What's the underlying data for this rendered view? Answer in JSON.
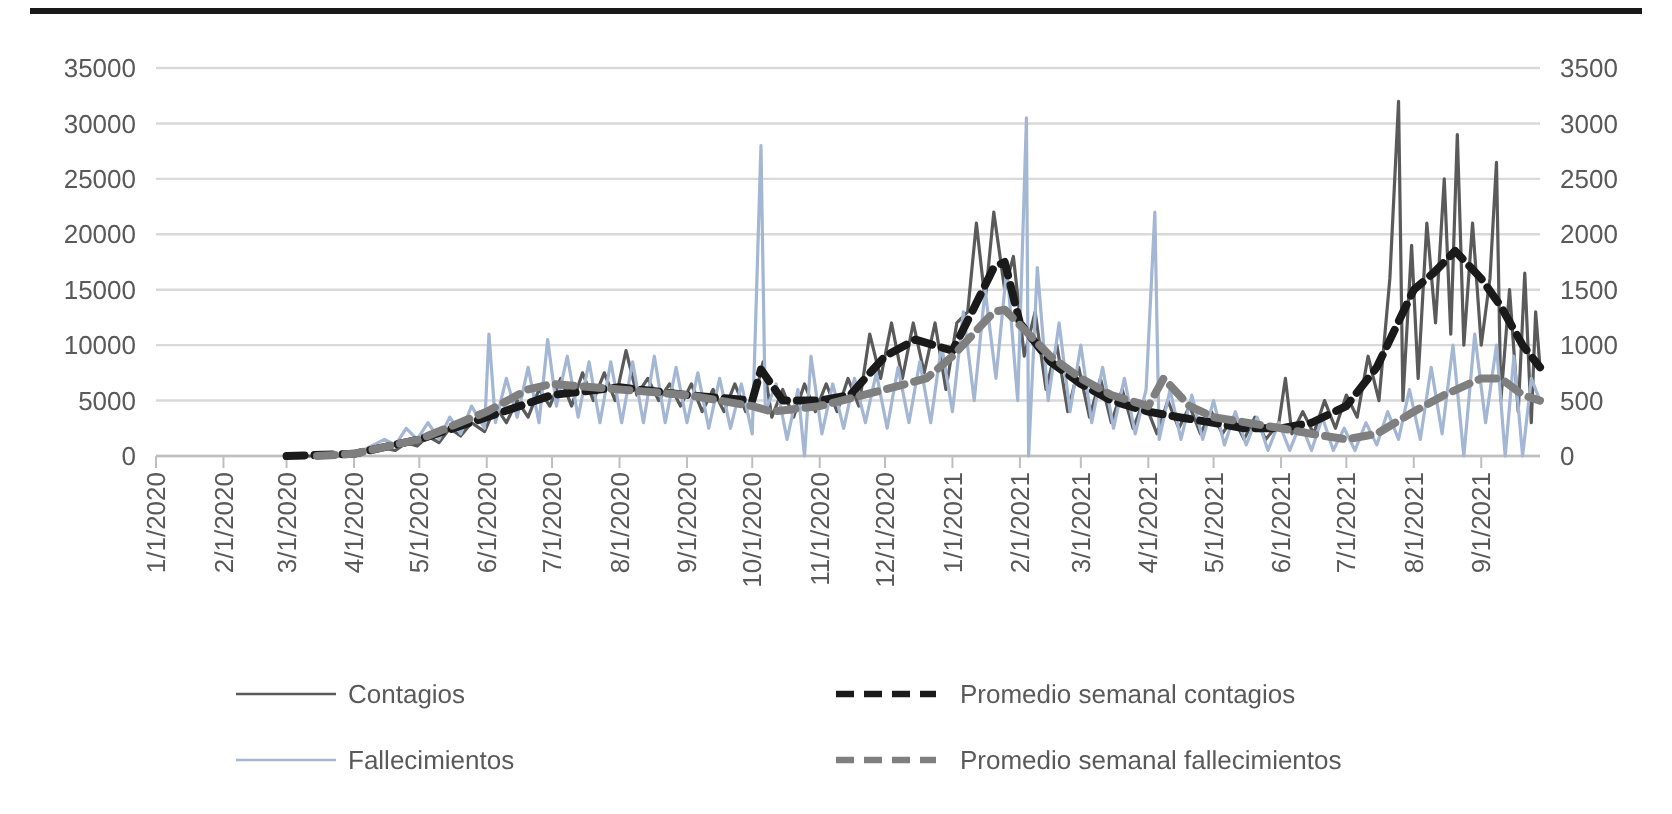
{
  "chart_data": {
    "type": "line",
    "xlim": [
      "2020-01-01",
      "2021-09-28"
    ],
    "xticks": [
      {
        "value": "2020-01-01",
        "label": "1/1/2020"
      },
      {
        "value": "2020-02-01",
        "label": "2/1/2020"
      },
      {
        "value": "2020-03-01",
        "label": "3/1/2020"
      },
      {
        "value": "2020-04-01",
        "label": "4/1/2020"
      },
      {
        "value": "2020-05-01",
        "label": "5/1/2020"
      },
      {
        "value": "2020-06-01",
        "label": "6/1/2020"
      },
      {
        "value": "2020-07-01",
        "label": "7/1/2020"
      },
      {
        "value": "2020-08-01",
        "label": "8/1/2020"
      },
      {
        "value": "2020-09-01",
        "label": "9/1/2020"
      },
      {
        "value": "2020-10-01",
        "label": "10/1/2020"
      },
      {
        "value": "2020-11-01",
        "label": "11/1/2020"
      },
      {
        "value": "2020-12-01",
        "label": "12/1/2020"
      },
      {
        "value": "2021-01-01",
        "label": "1/1/2021"
      },
      {
        "value": "2021-02-01",
        "label": "2/1/2021"
      },
      {
        "value": "2021-03-01",
        "label": "3/1/2021"
      },
      {
        "value": "2021-04-01",
        "label": "4/1/2021"
      },
      {
        "value": "2021-05-01",
        "label": "5/1/2021"
      },
      {
        "value": "2021-06-01",
        "label": "6/1/2021"
      },
      {
        "value": "2021-07-01",
        "label": "7/1/2021"
      },
      {
        "value": "2021-08-01",
        "label": "8/1/2021"
      },
      {
        "value": "2021-09-01",
        "label": "9/1/2021"
      }
    ],
    "ylim": [
      0,
      35000
    ],
    "yticks": [
      0,
      5000,
      10000,
      15000,
      20000,
      25000,
      30000,
      35000
    ],
    "y2lim": [
      0,
      3500
    ],
    "y2ticks": [
      0,
      500,
      1000,
      1500,
      2000,
      2500,
      3000,
      3500
    ],
    "grid": "y",
    "legend": "bottom",
    "marker": "none",
    "series": [
      {
        "name": "Contagios",
        "color": "#5a5a5a",
        "line_style": "solid",
        "x": [
          "2020-03-01",
          "2020-03-10",
          "2020-03-20",
          "2020-03-30",
          "2020-04-05",
          "2020-04-10",
          "2020-04-15",
          "2020-04-20",
          "2020-04-25",
          "2020-04-30",
          "2020-05-05",
          "2020-05-10",
          "2020-05-15",
          "2020-05-20",
          "2020-05-25",
          "2020-05-31",
          "2020-06-05",
          "2020-06-10",
          "2020-06-15",
          "2020-06-20",
          "2020-06-25",
          "2020-06-30",
          "2020-07-05",
          "2020-07-10",
          "2020-07-15",
          "2020-07-20",
          "2020-07-25",
          "2020-07-30",
          "2020-08-04",
          "2020-08-09",
          "2020-08-14",
          "2020-08-19",
          "2020-08-24",
          "2020-08-29",
          "2020-09-03",
          "2020-09-08",
          "2020-09-13",
          "2020-09-18",
          "2020-09-23",
          "2020-09-28",
          "2020-10-03",
          "2020-10-06",
          "2020-10-10",
          "2020-10-15",
          "2020-10-20",
          "2020-10-25",
          "2020-10-30",
          "2020-11-04",
          "2020-11-09",
          "2020-11-14",
          "2020-11-19",
          "2020-11-24",
          "2020-11-29",
          "2020-12-04",
          "2020-12-09",
          "2020-12-14",
          "2020-12-19",
          "2020-12-24",
          "2020-12-29",
          "2021-01-03",
          "2021-01-08",
          "2021-01-12",
          "2021-01-16",
          "2021-01-20",
          "2021-01-25",
          "2021-01-29",
          "2021-02-03",
          "2021-02-08",
          "2021-02-13",
          "2021-02-18",
          "2021-02-23",
          "2021-02-28",
          "2021-03-05",
          "2021-03-10",
          "2021-03-15",
          "2021-03-20",
          "2021-03-25",
          "2021-03-30",
          "2021-04-05",
          "2021-04-10",
          "2021-04-15",
          "2021-04-20",
          "2021-04-25",
          "2021-04-30",
          "2021-05-05",
          "2021-05-10",
          "2021-05-15",
          "2021-05-20",
          "2021-05-25",
          "2021-05-31",
          "2021-06-03",
          "2021-06-06",
          "2021-06-11",
          "2021-06-16",
          "2021-06-21",
          "2021-06-26",
          "2021-07-01",
          "2021-07-06",
          "2021-07-11",
          "2021-07-16",
          "2021-07-21",
          "2021-07-25",
          "2021-07-27",
          "2021-07-31",
          "2021-08-03",
          "2021-08-07",
          "2021-08-11",
          "2021-08-15",
          "2021-08-18",
          "2021-08-21",
          "2021-08-24",
          "2021-08-28",
          "2021-09-01",
          "2021-09-05",
          "2021-09-08",
          "2021-09-10",
          "2021-09-14",
          "2021-09-18",
          "2021-09-21",
          "2021-09-24",
          "2021-09-26",
          "2021-09-28"
        ],
        "values": [
          0,
          0,
          0,
          0,
          500,
          500,
          700,
          500,
          1200,
          900,
          1800,
          1200,
          2500,
          1800,
          3000,
          2200,
          4500,
          3000,
          5000,
          3500,
          6000,
          4500,
          7000,
          4500,
          7500,
          5000,
          7500,
          5000,
          9500,
          5500,
          7000,
          5000,
          6500,
          4500,
          6500,
          4000,
          6000,
          4000,
          6500,
          4000,
          6000,
          8500,
          3500,
          6000,
          3500,
          6500,
          4000,
          6500,
          4000,
          7000,
          4500,
          11000,
          7000,
          12000,
          7000,
          12000,
          7500,
          12000,
          6000,
          12000,
          13000,
          21000,
          14000,
          22000,
          15000,
          18000,
          9000,
          13000,
          6000,
          10000,
          4000,
          8000,
          3500,
          7000,
          3000,
          6000,
          2500,
          5000,
          2000,
          5000,
          2500,
          4500,
          2000,
          4000,
          2000,
          3500,
          1500,
          3500,
          1500,
          3000,
          7000,
          2000,
          4000,
          2000,
          5000,
          2500,
          5500,
          3500,
          9000,
          5000,
          16000,
          32000,
          5000,
          19000,
          7000,
          21000,
          12000,
          25000,
          11000,
          29000,
          10000,
          21000,
          10000,
          16000,
          26500,
          5000,
          15000,
          4000,
          16500,
          3000,
          13000,
          8000
        ]
      },
      {
        "name": "Fallecimientos",
        "color": "#a3b6d3",
        "line_style": "solid",
        "axis": "y2",
        "x": [
          "2020-03-20",
          "2020-03-30",
          "2020-04-05",
          "2020-04-10",
          "2020-04-15",
          "2020-04-20",
          "2020-04-25",
          "2020-04-30",
          "2020-05-05",
          "2020-05-10",
          "2020-05-15",
          "2020-05-20",
          "2020-05-25",
          "2020-05-31",
          "2020-06-02",
          "2020-06-05",
          "2020-06-10",
          "2020-06-15",
          "2020-06-20",
          "2020-06-25",
          "2020-06-29",
          "2020-07-03",
          "2020-07-08",
          "2020-07-13",
          "2020-07-18",
          "2020-07-23",
          "2020-07-28",
          "2020-08-02",
          "2020-08-07",
          "2020-08-12",
          "2020-08-17",
          "2020-08-22",
          "2020-08-27",
          "2020-09-01",
          "2020-09-06",
          "2020-09-11",
          "2020-09-16",
          "2020-09-21",
          "2020-09-26",
          "2020-10-01",
          "2020-10-05",
          "2020-10-07",
          "2020-10-12",
          "2020-10-17",
          "2020-10-22",
          "2020-10-25",
          "2020-10-28",
          "2020-11-02",
          "2020-11-07",
          "2020-11-12",
          "2020-11-17",
          "2020-11-22",
          "2020-11-27",
          "2020-12-02",
          "2020-12-07",
          "2020-12-12",
          "2020-12-17",
          "2020-12-22",
          "2020-12-27",
          "2021-01-01",
          "2021-01-06",
          "2021-01-11",
          "2021-01-16",
          "2021-01-21",
          "2021-01-26",
          "2021-01-31",
          "2021-02-04",
          "2021-02-05",
          "2021-02-09",
          "2021-02-14",
          "2021-02-19",
          "2021-02-24",
          "2021-03-01",
          "2021-03-06",
          "2021-03-11",
          "2021-03-16",
          "2021-03-21",
          "2021-03-26",
          "2021-03-31",
          "2021-04-04",
          "2021-04-06",
          "2021-04-11",
          "2021-04-16",
          "2021-04-21",
          "2021-04-26",
          "2021-05-01",
          "2021-05-06",
          "2021-05-11",
          "2021-05-16",
          "2021-05-21",
          "2021-05-26",
          "2021-05-31",
          "2021-06-05",
          "2021-06-10",
          "2021-06-15",
          "2021-06-20",
          "2021-06-25",
          "2021-06-30",
          "2021-07-05",
          "2021-07-10",
          "2021-07-15",
          "2021-07-20",
          "2021-07-25",
          "2021-07-30",
          "2021-08-04",
          "2021-08-09",
          "2021-08-14",
          "2021-08-19",
          "2021-08-24",
          "2021-08-29",
          "2021-09-03",
          "2021-09-08",
          "2021-09-12",
          "2021-09-16",
          "2021-09-20",
          "2021-09-24",
          "2021-09-28"
        ],
        "values": [
          0,
          20,
          50,
          100,
          150,
          100,
          250,
          150,
          300,
          150,
          350,
          200,
          450,
          250,
          1100,
          300,
          700,
          350,
          800,
          300,
          1050,
          450,
          900,
          350,
          850,
          300,
          850,
          300,
          850,
          300,
          900,
          300,
          800,
          300,
          750,
          250,
          700,
          250,
          650,
          200,
          2800,
          400,
          650,
          150,
          600,
          0,
          900,
          200,
          650,
          250,
          700,
          300,
          750,
          250,
          800,
          300,
          850,
          300,
          1000,
          400,
          1300,
          500,
          1500,
          700,
          1700,
          500,
          3050,
          0,
          1700,
          500,
          1200,
          400,
          1000,
          300,
          800,
          250,
          700,
          200,
          600,
          2200,
          150,
          600,
          150,
          550,
          150,
          500,
          100,
          400,
          100,
          350,
          50,
          300,
          50,
          300,
          50,
          350,
          50,
          250,
          50,
          300,
          100,
          400,
          150,
          600,
          150,
          800,
          200,
          1000,
          0,
          1100,
          300,
          1000,
          0,
          900,
          0,
          700,
          500
        ]
      },
      {
        "name": "Promedio semanal contagios",
        "color": "#1a1a1a",
        "line_style": "dashed",
        "x": [
          "2020-03-01",
          "2020-04-01",
          "2020-05-01",
          "2020-06-01",
          "2020-07-01",
          "2020-08-01",
          "2020-09-01",
          "2020-10-01",
          "2020-10-05",
          "2020-10-15",
          "2020-11-01",
          "2020-11-15",
          "2020-12-01",
          "2020-12-15",
          "2021-01-01",
          "2021-01-10",
          "2021-01-20",
          "2021-01-25",
          "2021-02-01",
          "2021-02-15",
          "2021-03-01",
          "2021-03-15",
          "2021-04-01",
          "2021-04-15",
          "2021-05-01",
          "2021-05-15",
          "2021-06-01",
          "2021-06-15",
          "2021-07-01",
          "2021-07-15",
          "2021-08-01",
          "2021-08-10",
          "2021-08-20",
          "2021-09-01",
          "2021-09-10",
          "2021-09-20",
          "2021-09-28"
        ],
        "values": [
          0,
          200,
          1500,
          3500,
          5500,
          6200,
          5500,
          5000,
          7800,
          5000,
          5000,
          5500,
          9000,
          10500,
          9500,
          13000,
          17000,
          17500,
          12000,
          8500,
          6500,
          5000,
          4000,
          3500,
          3000,
          2500,
          2500,
          3000,
          4500,
          8000,
          15000,
          16500,
          18500,
          16000,
          13500,
          10000,
          8000
        ]
      },
      {
        "name": "Promedio semanal fallecimientos",
        "color": "#7f7f7f",
        "line_style": "dashed",
        "axis": "y2",
        "x": [
          "2020-03-15",
          "2020-04-01",
          "2020-05-01",
          "2020-06-01",
          "2020-06-20",
          "2020-07-01",
          "2020-08-01",
          "2020-09-01",
          "2020-10-01",
          "2020-10-10",
          "2020-11-01",
          "2020-12-01",
          "2020-12-20",
          "2021-01-01",
          "2021-01-20",
          "2021-01-25",
          "2021-02-05",
          "2021-02-15",
          "2021-03-01",
          "2021-03-15",
          "2021-04-01",
          "2021-04-08",
          "2021-04-20",
          "2021-05-01",
          "2021-06-01",
          "2021-06-15",
          "2021-07-01",
          "2021-07-15",
          "2021-08-01",
          "2021-08-15",
          "2021-09-01",
          "2021-09-10",
          "2021-09-20",
          "2021-09-28"
        ],
        "values": [
          0,
          20,
          150,
          400,
          600,
          650,
          600,
          550,
          450,
          400,
          450,
          600,
          700,
          900,
          1300,
          1320,
          1100,
          900,
          700,
          550,
          450,
          700,
          450,
          350,
          250,
          200,
          150,
          200,
          400,
          550,
          700,
          700,
          550,
          500
        ]
      }
    ]
  }
}
